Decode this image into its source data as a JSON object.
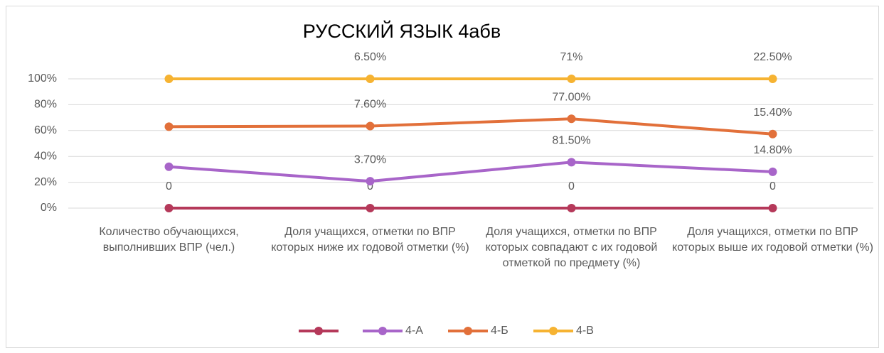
{
  "chart_data": {
    "type": "line",
    "stacked": "percent",
    "title": "РУССКИЙ ЯЗЫК 4абв",
    "categories": [
      "Количество обучающихся, выполнивших ВПР (чел.)",
      "Доля учащихся, отметки по ВПР которых ниже их годовой отметки (%)",
      "Доля учащихся, отметки по ВПР которых совпадают с их годовой отметкой по предмету (%)",
      "Доля учащихся, отметки по ВПР которых выше их годовой отметки (%)"
    ],
    "series": [
      {
        "color": "#b5395a",
        "values": [
          0,
          0,
          0,
          0
        ]
      },
      {
        "name": "4-А",
        "color": "#a865c9",
        "values": [
          32,
          3.7,
          81.5,
          14.8
        ],
        "value_labels": [
          null,
          "3.70%",
          "81.50%",
          "14.80%"
        ]
      },
      {
        "name": "4-Б",
        "color": "#e2703a",
        "values": [
          31,
          7.6,
          77,
          15.4
        ],
        "value_labels": [
          null,
          "7.60%",
          "77.00%",
          "15.40%"
        ]
      },
      {
        "name": "4-В",
        "color": "#f6b332",
        "values": [
          37,
          6.5,
          71,
          22.5
        ],
        "value_labels": [
          null,
          "6.50%",
          "71%",
          "22.50%"
        ]
      }
    ],
    "ylim": [
      0,
      100
    ],
    "yticks": [
      {
        "value": 0,
        "label": "0%"
      },
      {
        "value": 20,
        "label": "20%"
      },
      {
        "value": 40,
        "label": "40%"
      },
      {
        "value": 60,
        "label": "60%"
      },
      {
        "value": 80,
        "label": "80%"
      },
      {
        "value": 100,
        "label": "100%"
      }
    ],
    "grid": true,
    "legend": "bottom"
  }
}
